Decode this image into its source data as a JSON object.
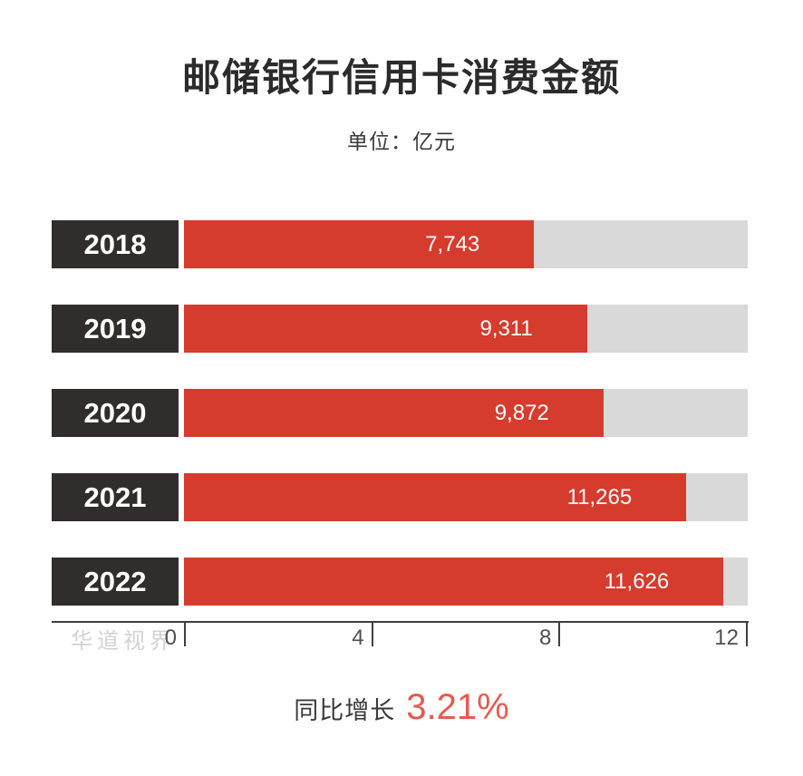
{
  "page": {
    "watermark": "华道视界"
  },
  "chart_data": {
    "type": "bar",
    "orientation": "horizontal",
    "title": "邮储银行信用卡消费金额",
    "unit_label": "单位：亿元",
    "categories": [
      "2018",
      "2019",
      "2020",
      "2021",
      "2022"
    ],
    "values": [
      7743,
      9311,
      9872,
      11265,
      11626
    ],
    "value_labels": [
      "7,743",
      "9,311",
      "9,872",
      "11,265",
      "11,626"
    ],
    "xlabel": "",
    "ylabel": "",
    "xlim": [
      0,
      12000
    ],
    "x_ticks": [
      0,
      4,
      8,
      12
    ],
    "x_tick_scale": "thousands",
    "bar_display_pct": [
      62.1,
      71.5,
      74.4,
      89.1,
      95.7
    ],
    "grid": false,
    "legend": "none",
    "annotation": {
      "label": "同比增长",
      "value": "3.21%"
    },
    "colors": {
      "bar": "#d53c2d",
      "track": "#d9d9d9",
      "year_box": "#312d2d",
      "bar_label": "#ffffff",
      "growth_value": "#e65a4e",
      "text": "#2b2b2b"
    }
  }
}
